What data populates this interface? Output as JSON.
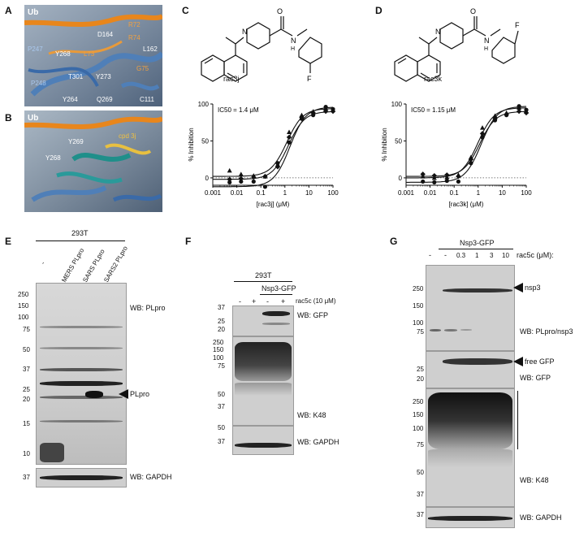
{
  "panels": {
    "A": {
      "letter": "A",
      "labels": [
        "Ub",
        "D164",
        "R72",
        "R74",
        "P247",
        "Y268",
        "L73",
        "L162",
        "P248",
        "T301",
        "Y273",
        "G75",
        "Y264",
        "Q269",
        "C111"
      ]
    },
    "B": {
      "letter": "B",
      "labels": [
        "Ub",
        "Y268",
        "Y269",
        "cpd 3j"
      ]
    },
    "C": {
      "letter": "C",
      "compound": "rac3j",
      "substituent": "F",
      "ic50": "IC50 = 1.4 μM",
      "ylabel": "% Inhibition",
      "xlabel": "[rac3j] (μM)"
    },
    "D": {
      "letter": "D",
      "compound": "rac3k",
      "substituent": "F",
      "ic50": "IC50 = 1.15 μM",
      "ylabel": "% Inhibition",
      "xlabel": "[rac3k] (μM)"
    },
    "E": {
      "letter": "E",
      "cell": "293T",
      "lanes": [
        "-",
        "MERS PLpro",
        "SARS PLpro",
        "SARS2 PLpro"
      ],
      "ladder": [
        "250",
        "150",
        "100",
        "75",
        "50",
        "37",
        "25",
        "20",
        "15",
        "10"
      ],
      "arrow": "PLpro",
      "wb_top": "WB: PLpro",
      "gapdh_mw": "37",
      "wb_bottom": "WB: GAPDH"
    },
    "F": {
      "letter": "F",
      "cell": "293T",
      "construct": "Nsp3-GFP",
      "treatment": "rac5c (10 μM)",
      "lane_signs": [
        "-",
        "+",
        "-",
        "+"
      ],
      "gfp_ladder": [
        "37",
        "25",
        "20"
      ],
      "k48_ladder": [
        "250",
        "150",
        "100",
        "75",
        "50",
        "37"
      ],
      "gapdh_ladder": [
        "50",
        "37"
      ],
      "wb_gfp": "WB: GFP",
      "wb_k48": "WB: K48",
      "wb_gapdh": "WB: GAPDH"
    },
    "G": {
      "letter": "G",
      "construct": "Nsp3-GFP",
      "treatment": "rac5c (μM):",
      "lanes": [
        "-",
        "-",
        "0.3",
        "1",
        "3",
        "10"
      ],
      "nsp3_ladder": [
        "250",
        "150",
        "100",
        "75"
      ],
      "gfp_ladder": [
        "25",
        "20"
      ],
      "k48_ladder": [
        "250",
        "150",
        "100",
        "75",
        "50",
        "37"
      ],
      "gapdh_ladder": [
        "37"
      ],
      "arrow_nsp3": "nsp3",
      "arrow_gfp": "free GFP",
      "wb_nsp3": "WB: PLpro/nsp3",
      "wb_gfp": "WB: GFP",
      "wb_k48": "WB: K48",
      "wb_gapdh": "WB: GAPDH"
    }
  },
  "chart_data": [
    {
      "type": "scatter",
      "title": "",
      "xlabel": "[rac3j] (μM)",
      "ylabel": "% Inhibition",
      "xscale": "log",
      "xlim": [
        0.001,
        100
      ],
      "ylim": [
        -10,
        100
      ],
      "xticks": [
        "0.001",
        "0.01",
        "0.1",
        "1",
        "10",
        "100"
      ],
      "yticks": [
        "0",
        "50",
        "100"
      ],
      "ic50": 1.4,
      "x": [
        0.005,
        0.015,
        0.05,
        0.15,
        0.5,
        1.5,
        5,
        15,
        50,
        100
      ],
      "series": [
        {
          "marker": "triangle",
          "values": [
            10,
            5,
            3,
            2,
            18,
            62,
            85,
            90,
            94,
            92
          ]
        },
        {
          "marker": "diamond",
          "values": [
            -2,
            -1,
            1,
            2,
            15,
            55,
            82,
            88,
            90,
            90
          ]
        },
        {
          "marker": "circle",
          "values": [
            -6,
            -5,
            -5,
            -12,
            20,
            48,
            80,
            85,
            96,
            93
          ]
        }
      ]
    },
    {
      "type": "scatter",
      "title": "",
      "xlabel": "[rac3k] (μM)",
      "ylabel": "% Inhibition",
      "xscale": "log",
      "xlim": [
        0.001,
        100
      ],
      "ylim": [
        -10,
        100
      ],
      "xticks": [
        "0.001",
        "0.01",
        "0.1",
        "1",
        "10",
        "100"
      ],
      "yticks": [
        "0",
        "50",
        "100"
      ],
      "ic50": 1.15,
      "x": [
        0.005,
        0.015,
        0.05,
        0.15,
        0.5,
        1.5,
        5,
        15,
        50,
        100
      ],
      "series": [
        {
          "marker": "triangle",
          "values": [
            2,
            0,
            1,
            4,
            28,
            68,
            84,
            88,
            95,
            90
          ]
        },
        {
          "marker": "diamond",
          "values": [
            5,
            3,
            4,
            2,
            25,
            60,
            80,
            86,
            90,
            88
          ]
        },
        {
          "marker": "circle",
          "values": [
            -5,
            -6,
            -4,
            -5,
            20,
            55,
            78,
            85,
            97,
            92
          ]
        }
      ]
    }
  ]
}
